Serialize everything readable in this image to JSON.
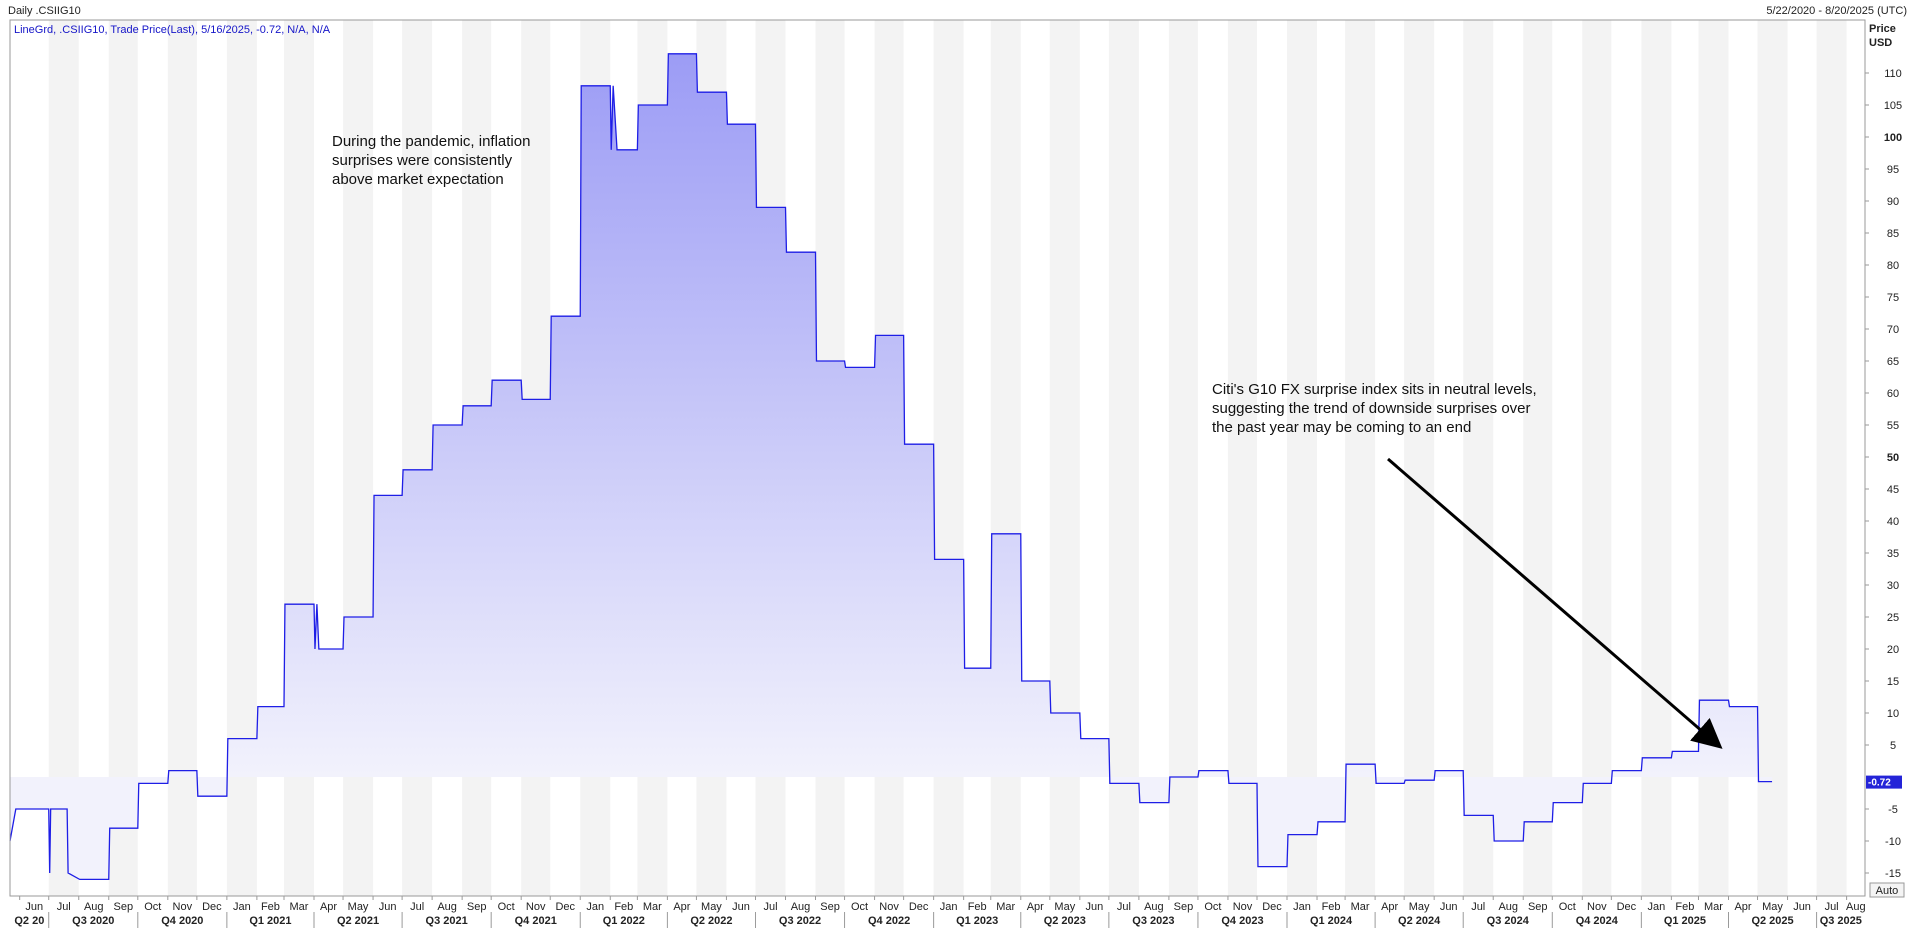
{
  "header": {
    "chart_name": "Daily .CSIIG10",
    "date_range": "5/22/2020 - 8/20/2025 (UTC)",
    "legend": "LineGrd, .CSIIG10, Trade Price(Last), 5/16/2025, -0.72, N/A, N/A"
  },
  "axis": {
    "price_label": "Price",
    "currency_label": "USD",
    "auto_button": "Auto",
    "last_value": "-0.72"
  },
  "annotations": {
    "pandemic": [
      "During the pandemic, inflation",
      "surprises were consistently",
      "above market expectation"
    ],
    "neutral": [
      "Citi's G10 FX surprise index sits in neutral levels,",
      "suggesting the trend of downside surprises over",
      "the past year may be coming to an end"
    ]
  },
  "colors": {
    "line": "#1e1ee6",
    "fill_top": "#9c9cf5",
    "fill_bottom": "#f2f2fc",
    "band": "#f3f3f3",
    "arrow": "#000000"
  },
  "chart_data": {
    "type": "area",
    "title": "Daily .CSIIG10",
    "series_name": ".CSIIG10",
    "ylim": [
      -17,
      118
    ],
    "y_ticks": [
      -15,
      -10,
      -5,
      5,
      10,
      15,
      20,
      25,
      30,
      35,
      40,
      45,
      50,
      55,
      60,
      65,
      70,
      75,
      80,
      85,
      90,
      95,
      100,
      105,
      110
    ],
    "y_ticks_bold": [
      50,
      100
    ],
    "grid": "alternating monthly shaded bands",
    "months": [
      "Jun",
      "Jul",
      "Aug",
      "Sep",
      "Oct",
      "Nov",
      "Dec",
      "Jan",
      "Feb",
      "Mar",
      "Apr",
      "May",
      "Jun",
      "Jul",
      "Aug",
      "Sep",
      "Oct",
      "Nov",
      "Dec",
      "Jan",
      "Feb",
      "Mar",
      "Apr",
      "May",
      "Jun",
      "Jul",
      "Aug",
      "Sep",
      "Oct",
      "Nov",
      "Dec",
      "Jan",
      "Feb",
      "Mar",
      "Apr",
      "May",
      "Jun",
      "Jul",
      "Aug",
      "Sep",
      "Oct",
      "Nov",
      "Dec",
      "Jan",
      "Feb",
      "Mar",
      "Apr",
      "May",
      "Jun",
      "Jul",
      "Aug",
      "Sep",
      "Oct",
      "Nov",
      "Dec",
      "Jan",
      "Feb",
      "Mar",
      "Apr",
      "May",
      "Jun",
      "Jul",
      "Aug"
    ],
    "quarters": [
      "Q2 20",
      "Q3 2020",
      "Q4 2020",
      "Q1 2021",
      "Q2 2021",
      "Q3 2021",
      "Q4 2021",
      "Q1 2022",
      "Q2 2022",
      "Q3 2022",
      "Q4 2022",
      "Q1 2023",
      "Q2 2023",
      "Q3 2023",
      "Q4 2023",
      "Q1 2024",
      "Q2 2024",
      "Q3 2024",
      "Q4 2024",
      "Q1 2025",
      "Q2 2025",
      "Q3 2025"
    ],
    "points": [
      [
        "2020-05-22",
        -10
      ],
      [
        "2020-05-28",
        -5
      ],
      [
        "2020-07-01",
        -5
      ],
      [
        "2020-07-02",
        -15
      ],
      [
        "2020-07-03",
        -5
      ],
      [
        "2020-07-20",
        -5
      ],
      [
        "2020-07-21",
        -15
      ],
      [
        "2020-08-02",
        -16
      ],
      [
        "2020-09-01",
        -16
      ],
      [
        "2020-09-02",
        -8
      ],
      [
        "2020-10-01",
        -8
      ],
      [
        "2020-10-02",
        -1
      ],
      [
        "2020-11-01",
        -1
      ],
      [
        "2020-11-02",
        1
      ],
      [
        "2020-12-01",
        1
      ],
      [
        "2020-12-02",
        -3
      ],
      [
        "2021-01-01",
        -3
      ],
      [
        "2021-01-02",
        6
      ],
      [
        "2021-02-01",
        6
      ],
      [
        "2021-02-02",
        11
      ],
      [
        "2021-03-01",
        11
      ],
      [
        "2021-03-02",
        27
      ],
      [
        "2021-04-01",
        27
      ],
      [
        "2021-04-02",
        20
      ],
      [
        "2021-04-04",
        27
      ],
      [
        "2021-04-06",
        20
      ],
      [
        "2021-05-01",
        20
      ],
      [
        "2021-05-02",
        25
      ],
      [
        "2021-06-01",
        25
      ],
      [
        "2021-06-02",
        44
      ],
      [
        "2021-07-01",
        44
      ],
      [
        "2021-07-02",
        48
      ],
      [
        "2021-08-01",
        48
      ],
      [
        "2021-08-02",
        55
      ],
      [
        "2021-09-01",
        55
      ],
      [
        "2021-09-02",
        58
      ],
      [
        "2021-10-01",
        58
      ],
      [
        "2021-10-02",
        62
      ],
      [
        "2021-11-01",
        62
      ],
      [
        "2021-11-02",
        59
      ],
      [
        "2021-12-01",
        59
      ],
      [
        "2021-12-02",
        72
      ],
      [
        "2022-01-01",
        72
      ],
      [
        "2022-01-02",
        108
      ],
      [
        "2022-02-01",
        108
      ],
      [
        "2022-02-02",
        98
      ],
      [
        "2022-02-04",
        108
      ],
      [
        "2022-02-08",
        98
      ],
      [
        "2022-03-01",
        98
      ],
      [
        "2022-03-02",
        105
      ],
      [
        "2022-04-01",
        105
      ],
      [
        "2022-04-02",
        113
      ],
      [
        "2022-05-01",
        113
      ],
      [
        "2022-05-02",
        107
      ],
      [
        "2022-06-01",
        107
      ],
      [
        "2022-06-02",
        102
      ],
      [
        "2022-07-01",
        102
      ],
      [
        "2022-07-02",
        89
      ],
      [
        "2022-08-01",
        89
      ],
      [
        "2022-08-02",
        82
      ],
      [
        "2022-09-01",
        82
      ],
      [
        "2022-09-02",
        65
      ],
      [
        "2022-10-01",
        65
      ],
      [
        "2022-10-02",
        64
      ],
      [
        "2022-11-01",
        64
      ],
      [
        "2022-11-02",
        69
      ],
      [
        "2022-12-01",
        69
      ],
      [
        "2022-12-02",
        52
      ],
      [
        "2023-01-01",
        52
      ],
      [
        "2023-01-02",
        34
      ],
      [
        "2023-02-01",
        34
      ],
      [
        "2023-02-02",
        17
      ],
      [
        "2023-03-01",
        17
      ],
      [
        "2023-03-02",
        38
      ],
      [
        "2023-04-01",
        38
      ],
      [
        "2023-04-02",
        15
      ],
      [
        "2023-05-01",
        15
      ],
      [
        "2023-05-02",
        10
      ],
      [
        "2023-06-01",
        10
      ],
      [
        "2023-06-02",
        6
      ],
      [
        "2023-07-01",
        6
      ],
      [
        "2023-07-02",
        -1
      ],
      [
        "2023-08-01",
        -1
      ],
      [
        "2023-08-02",
        -4
      ],
      [
        "2023-09-01",
        -4
      ],
      [
        "2023-09-02",
        0
      ],
      [
        "2023-10-01",
        0
      ],
      [
        "2023-10-02",
        1
      ],
      [
        "2023-11-01",
        1
      ],
      [
        "2023-11-02",
        -1
      ],
      [
        "2023-12-01",
        -1
      ],
      [
        "2023-12-02",
        -14
      ],
      [
        "2024-01-01",
        -14
      ],
      [
        "2024-01-02",
        -9
      ],
      [
        "2024-02-01",
        -9
      ],
      [
        "2024-02-02",
        -7
      ],
      [
        "2024-03-01",
        -7
      ],
      [
        "2024-03-02",
        2
      ],
      [
        "2024-04-01",
        2
      ],
      [
        "2024-04-02",
        -1
      ],
      [
        "2024-05-01",
        -1
      ],
      [
        "2024-05-02",
        -0.5
      ],
      [
        "2024-06-01",
        -0.5
      ],
      [
        "2024-06-02",
        1
      ],
      [
        "2024-07-01",
        1
      ],
      [
        "2024-07-02",
        -6
      ],
      [
        "2024-08-01",
        -6
      ],
      [
        "2024-08-02",
        -10
      ],
      [
        "2024-09-01",
        -10
      ],
      [
        "2024-09-02",
        -7
      ],
      [
        "2024-10-01",
        -7
      ],
      [
        "2024-10-02",
        -4
      ],
      [
        "2024-11-01",
        -4
      ],
      [
        "2024-11-02",
        -1
      ],
      [
        "2024-12-01",
        -1
      ],
      [
        "2024-12-02",
        1
      ],
      [
        "2025-01-01",
        1
      ],
      [
        "2025-01-02",
        3
      ],
      [
        "2025-02-01",
        3
      ],
      [
        "2025-02-02",
        4
      ],
      [
        "2025-03-01",
        4
      ],
      [
        "2025-03-02",
        12
      ],
      [
        "2025-04-01",
        12
      ],
      [
        "2025-04-02",
        11
      ],
      [
        "2025-05-01",
        11
      ],
      [
        "2025-05-02",
        -0.72
      ],
      [
        "2025-05-16",
        -0.72
      ]
    ]
  }
}
